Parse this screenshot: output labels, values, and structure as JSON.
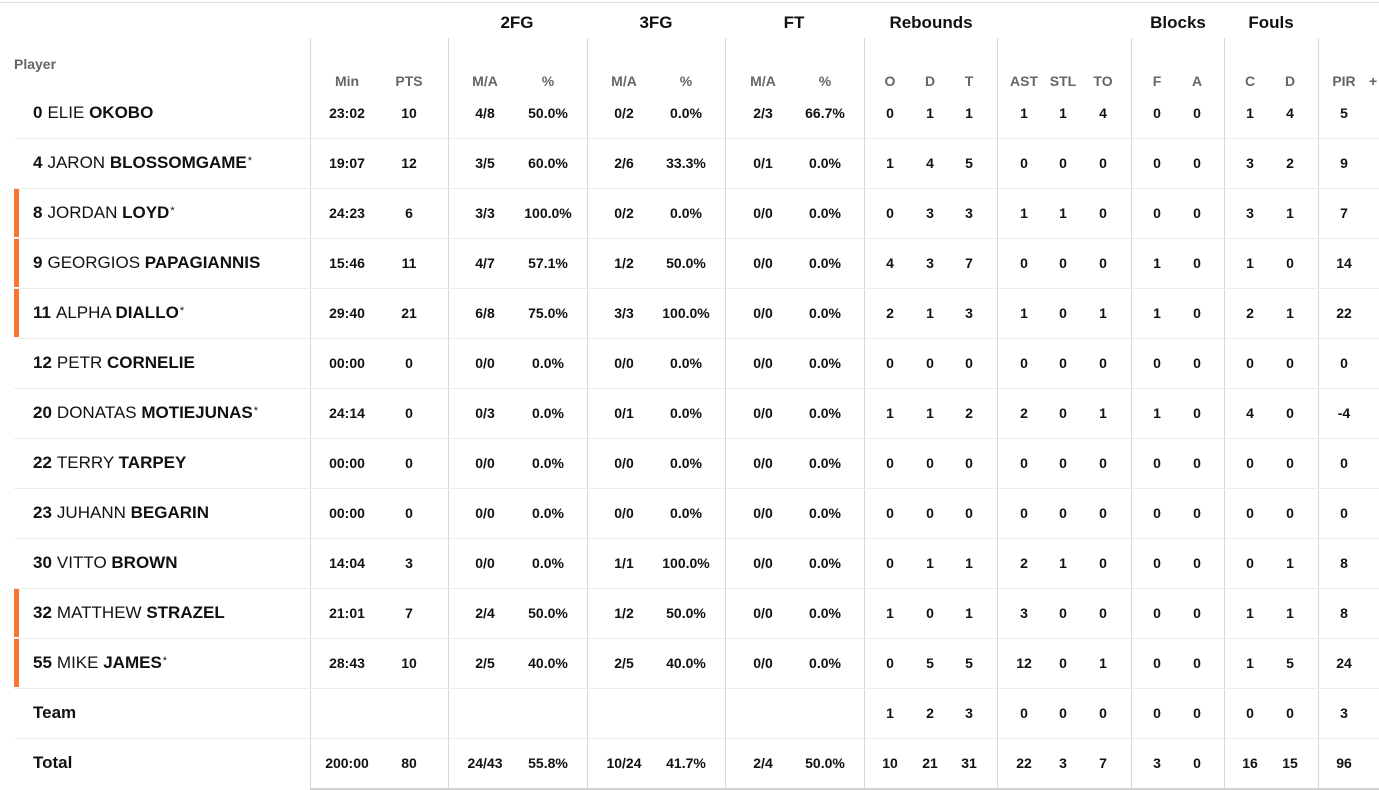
{
  "headers": {
    "player": "Player",
    "groups": {
      "fg2": "2FG",
      "fg3": "3FG",
      "ft": "FT",
      "rebounds": "Rebounds",
      "blocks": "Blocks",
      "fouls": "Fouls"
    },
    "columns": {
      "min": "Min",
      "pts": "PTS",
      "fg2_ma": "M/A",
      "fg2_pct": "%",
      "fg3_ma": "M/A",
      "fg3_pct": "%",
      "ft_ma": "M/A",
      "ft_pct": "%",
      "o": "O",
      "d": "D",
      "t": "T",
      "ast": "AST",
      "stl": "STL",
      "to": "TO",
      "bf": "F",
      "ba": "A",
      "fc": "C",
      "fd": "D",
      "pir": "PIR",
      "plus": "+"
    }
  },
  "colors": {
    "starter_marker": "#f7752f"
  },
  "players": [
    {
      "num": "0",
      "first": "ELIE",
      "last": "OKOBO",
      "star": "",
      "min": "23:02",
      "pts": "10",
      "fg2_ma": "4/8",
      "fg2_pct": "50.0%",
      "fg3_ma": "0/2",
      "fg3_pct": "0.0%",
      "ft_ma": "2/3",
      "ft_pct": "66.7%",
      "o": "0",
      "d": "1",
      "t": "1",
      "ast": "1",
      "stl": "1",
      "to": "4",
      "bf": "0",
      "ba": "0",
      "fc": "1",
      "fd": "4",
      "pir": "5"
    },
    {
      "num": "4",
      "first": "JARON",
      "last": "BLOSSOMGAME",
      "star": "*",
      "min": "19:07",
      "pts": "12",
      "fg2_ma": "3/5",
      "fg2_pct": "60.0%",
      "fg3_ma": "2/6",
      "fg3_pct": "33.3%",
      "ft_ma": "0/1",
      "ft_pct": "0.0%",
      "o": "1",
      "d": "4",
      "t": "5",
      "ast": "0",
      "stl": "0",
      "to": "0",
      "bf": "0",
      "ba": "0",
      "fc": "3",
      "fd": "2",
      "pir": "9"
    },
    {
      "num": "8",
      "first": "JORDAN",
      "last": "LOYD",
      "star": "*",
      "min": "24:23",
      "pts": "6",
      "fg2_ma": "3/3",
      "fg2_pct": "100.0%",
      "fg3_ma": "0/2",
      "fg3_pct": "0.0%",
      "ft_ma": "0/0",
      "ft_pct": "0.0%",
      "o": "0",
      "d": "3",
      "t": "3",
      "ast": "1",
      "stl": "1",
      "to": "0",
      "bf": "0",
      "ba": "0",
      "fc": "3",
      "fd": "1",
      "pir": "7"
    },
    {
      "num": "9",
      "first": "GEORGIOS",
      "last": "PAPAGIANNIS",
      "star": "",
      "min": "15:46",
      "pts": "11",
      "fg2_ma": "4/7",
      "fg2_pct": "57.1%",
      "fg3_ma": "1/2",
      "fg3_pct": "50.0%",
      "ft_ma": "0/0",
      "ft_pct": "0.0%",
      "o": "4",
      "d": "3",
      "t": "7",
      "ast": "0",
      "stl": "0",
      "to": "0",
      "bf": "1",
      "ba": "0",
      "fc": "1",
      "fd": "0",
      "pir": "14"
    },
    {
      "num": "11",
      "first": "ALPHA",
      "last": "DIALLO",
      "star": "*",
      "min": "29:40",
      "pts": "21",
      "fg2_ma": "6/8",
      "fg2_pct": "75.0%",
      "fg3_ma": "3/3",
      "fg3_pct": "100.0%",
      "ft_ma": "0/0",
      "ft_pct": "0.0%",
      "o": "2",
      "d": "1",
      "t": "3",
      "ast": "1",
      "stl": "0",
      "to": "1",
      "bf": "1",
      "ba": "0",
      "fc": "2",
      "fd": "1",
      "pir": "22"
    },
    {
      "num": "12",
      "first": "PETR",
      "last": "CORNELIE",
      "star": "",
      "min": "00:00",
      "pts": "0",
      "fg2_ma": "0/0",
      "fg2_pct": "0.0%",
      "fg3_ma": "0/0",
      "fg3_pct": "0.0%",
      "ft_ma": "0/0",
      "ft_pct": "0.0%",
      "o": "0",
      "d": "0",
      "t": "0",
      "ast": "0",
      "stl": "0",
      "to": "0",
      "bf": "0",
      "ba": "0",
      "fc": "0",
      "fd": "0",
      "pir": "0"
    },
    {
      "num": "20",
      "first": "DONATAS",
      "last": "MOTIEJUNAS",
      "star": "*",
      "min": "24:14",
      "pts": "0",
      "fg2_ma": "0/3",
      "fg2_pct": "0.0%",
      "fg3_ma": "0/1",
      "fg3_pct": "0.0%",
      "ft_ma": "0/0",
      "ft_pct": "0.0%",
      "o": "1",
      "d": "1",
      "t": "2",
      "ast": "2",
      "stl": "0",
      "to": "1",
      "bf": "1",
      "ba": "0",
      "fc": "4",
      "fd": "0",
      "pir": "-4"
    },
    {
      "num": "22",
      "first": "TERRY",
      "last": "TARPEY",
      "star": "",
      "min": "00:00",
      "pts": "0",
      "fg2_ma": "0/0",
      "fg2_pct": "0.0%",
      "fg3_ma": "0/0",
      "fg3_pct": "0.0%",
      "ft_ma": "0/0",
      "ft_pct": "0.0%",
      "o": "0",
      "d": "0",
      "t": "0",
      "ast": "0",
      "stl": "0",
      "to": "0",
      "bf": "0",
      "ba": "0",
      "fc": "0",
      "fd": "0",
      "pir": "0"
    },
    {
      "num": "23",
      "first": "JUHANN",
      "last": "BEGARIN",
      "star": "",
      "min": "00:00",
      "pts": "0",
      "fg2_ma": "0/0",
      "fg2_pct": "0.0%",
      "fg3_ma": "0/0",
      "fg3_pct": "0.0%",
      "ft_ma": "0/0",
      "ft_pct": "0.0%",
      "o": "0",
      "d": "0",
      "t": "0",
      "ast": "0",
      "stl": "0",
      "to": "0",
      "bf": "0",
      "ba": "0",
      "fc": "0",
      "fd": "0",
      "pir": "0"
    },
    {
      "num": "30",
      "first": "VITTO",
      "last": "BROWN",
      "star": "",
      "min": "14:04",
      "pts": "3",
      "fg2_ma": "0/0",
      "fg2_pct": "0.0%",
      "fg3_ma": "1/1",
      "fg3_pct": "100.0%",
      "ft_ma": "0/0",
      "ft_pct": "0.0%",
      "o": "0",
      "d": "1",
      "t": "1",
      "ast": "2",
      "stl": "1",
      "to": "0",
      "bf": "0",
      "ba": "0",
      "fc": "0",
      "fd": "1",
      "pir": "8"
    },
    {
      "num": "32",
      "first": "MATTHEW",
      "last": "STRAZEL",
      "star": "",
      "min": "21:01",
      "pts": "7",
      "fg2_ma": "2/4",
      "fg2_pct": "50.0%",
      "fg3_ma": "1/2",
      "fg3_pct": "50.0%",
      "ft_ma": "0/0",
      "ft_pct": "0.0%",
      "o": "1",
      "d": "0",
      "t": "1",
      "ast": "3",
      "stl": "0",
      "to": "0",
      "bf": "0",
      "ba": "0",
      "fc": "1",
      "fd": "1",
      "pir": "8"
    },
    {
      "num": "55",
      "first": "MIKE",
      "last": "JAMES",
      "star": "*",
      "min": "28:43",
      "pts": "10",
      "fg2_ma": "2/5",
      "fg2_pct": "40.0%",
      "fg3_ma": "2/5",
      "fg3_pct": "40.0%",
      "ft_ma": "0/0",
      "ft_pct": "0.0%",
      "o": "0",
      "d": "5",
      "t": "5",
      "ast": "12",
      "stl": "0",
      "to": "1",
      "bf": "0",
      "ba": "0",
      "fc": "1",
      "fd": "5",
      "pir": "24"
    }
  ],
  "team": {
    "label": "Team",
    "min": "",
    "pts": "",
    "fg2_ma": "",
    "fg2_pct": "",
    "fg3_ma": "",
    "fg3_pct": "",
    "ft_ma": "",
    "ft_pct": "",
    "o": "1",
    "d": "2",
    "t": "3",
    "ast": "0",
    "stl": "0",
    "to": "0",
    "bf": "0",
    "ba": "0",
    "fc": "0",
    "fd": "0",
    "pir": "3"
  },
  "total": {
    "label": "Total",
    "min": "200:00",
    "pts": "80",
    "fg2_ma": "24/43",
    "fg2_pct": "55.8%",
    "fg3_ma": "10/24",
    "fg3_pct": "41.7%",
    "ft_ma": "2/4",
    "ft_pct": "50.0%",
    "o": "10",
    "d": "21",
    "t": "31",
    "ast": "22",
    "stl": "3",
    "to": "7",
    "bf": "3",
    "ba": "0",
    "fc": "16",
    "fd": "15",
    "pir": "96"
  }
}
